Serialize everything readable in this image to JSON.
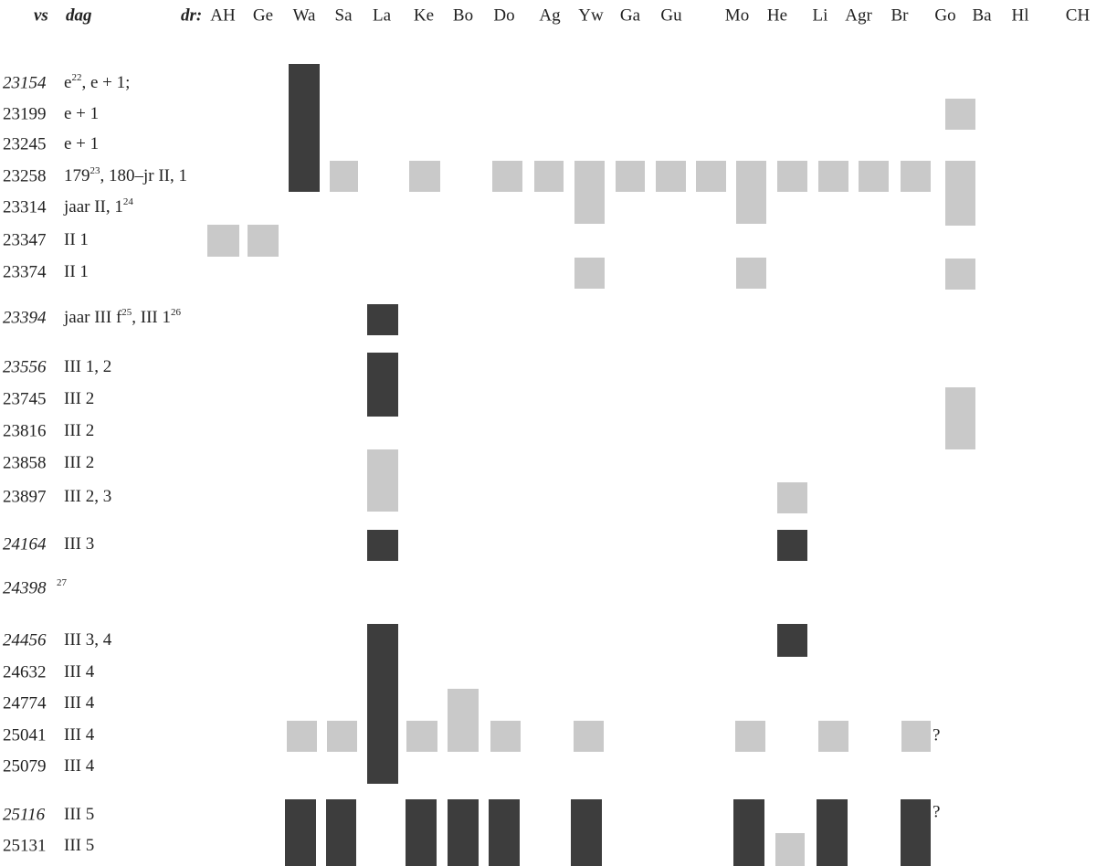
{
  "header": {
    "verse_label": "vs",
    "day_label": "dag",
    "columns_label": "dr:",
    "columns": [
      "AH",
      "Ge",
      "Wa",
      "Sa",
      "La",
      "Ke",
      "Bo",
      "Do",
      "Ag",
      "Yw",
      "Ga",
      "Gu",
      "Mo",
      "He",
      "Li",
      "Agr",
      "Br",
      "Go",
      "Ba",
      "Hl",
      "CH"
    ]
  },
  "rows": [
    {
      "verse": "23154",
      "italic": true,
      "day": [
        {
          "text": "e"
        },
        {
          "sup": "22"
        },
        {
          "text": ", e + 1;"
        }
      ]
    },
    {
      "verse": "23199",
      "italic": false,
      "day": [
        {
          "text": "e + 1"
        }
      ]
    },
    {
      "verse": "23245",
      "italic": false,
      "day": [
        {
          "text": "e + 1"
        }
      ]
    },
    {
      "verse": "23258",
      "italic": false,
      "day": [
        {
          "text": "179"
        },
        {
          "sup": "23"
        },
        {
          "text": ", 180–jr II, 1"
        }
      ]
    },
    {
      "verse": "23314",
      "italic": false,
      "day": [
        {
          "text": "jaar II, 1"
        },
        {
          "sup": "24"
        }
      ]
    },
    {
      "verse": "23347",
      "italic": false,
      "day": [
        {
          "text": "II 1"
        }
      ]
    },
    {
      "verse": "23374",
      "italic": false,
      "day": [
        {
          "text": "II 1"
        }
      ]
    },
    {
      "verse": "23394",
      "italic": true,
      "day": [
        {
          "text": "jaar III f"
        },
        {
          "sup": "25"
        },
        {
          "text": ", III 1"
        },
        {
          "sup": "26"
        }
      ]
    },
    {
      "verse": "23556",
      "italic": true,
      "day": [
        {
          "text": "III 1, 2"
        }
      ]
    },
    {
      "verse": "23745",
      "italic": false,
      "day": [
        {
          "text": "III 2"
        }
      ]
    },
    {
      "verse": "23816",
      "italic": false,
      "day": [
        {
          "text": "III 2"
        }
      ]
    },
    {
      "verse": "23858",
      "italic": false,
      "day": [
        {
          "text": "III 2"
        }
      ]
    },
    {
      "verse": "23897",
      "italic": false,
      "day": [
        {
          "text": "III 2, 3"
        }
      ]
    },
    {
      "verse": "24164",
      "italic": true,
      "day": [
        {
          "text": "III 3"
        }
      ]
    },
    {
      "verse": "24398",
      "italic": true,
      "day": [
        {
          "sup": "27"
        }
      ]
    },
    {
      "verse": "24456",
      "italic": true,
      "day": [
        {
          "text": "III 3, 4"
        }
      ]
    },
    {
      "verse": "24632",
      "italic": false,
      "day": [
        {
          "text": "III 4"
        }
      ]
    },
    {
      "verse": "24774",
      "italic": false,
      "day": [
        {
          "text": "III 4"
        }
      ]
    },
    {
      "verse": "25041",
      "italic": false,
      "day": [
        {
          "text": "III 4"
        }
      ]
    },
    {
      "verse": "25079",
      "italic": false,
      "day": [
        {
          "text": "III 4"
        }
      ]
    },
    {
      "verse": "25116",
      "italic": true,
      "day": [
        {
          "text": "III 5"
        }
      ]
    },
    {
      "verse": "25131",
      "italic": false,
      "day": [
        {
          "text": "III 5"
        }
      ]
    }
  ],
  "query_mark": "?"
}
